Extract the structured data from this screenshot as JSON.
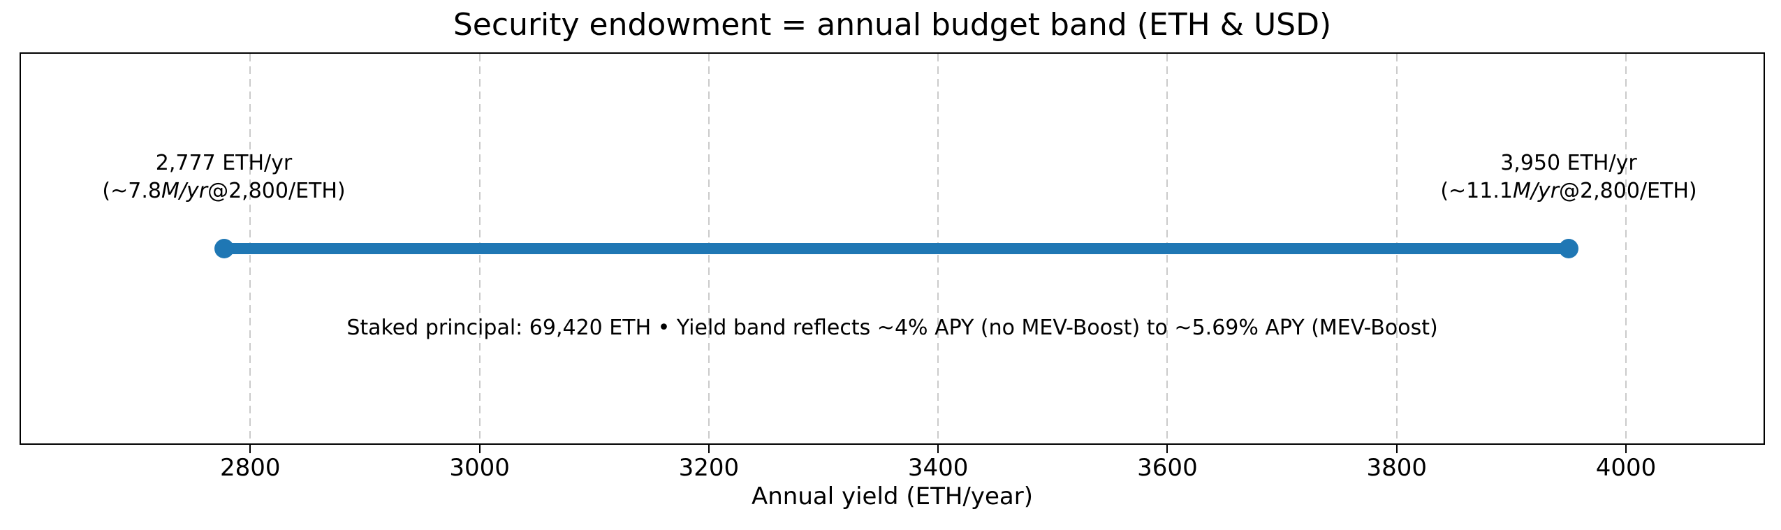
{
  "chart_data": {
    "type": "line",
    "variant": "horizontal-range-band",
    "title": "Security endowment = annual budget band (ETH & USD)",
    "xlabel": "Annual yield (ETH/year)",
    "xlim": [
      2600,
      4120
    ],
    "xticks": [
      "2800",
      "3000",
      "3200",
      "3400",
      "3600",
      "3800",
      "4000"
    ],
    "xtick_values": [
      2800,
      3000,
      3200,
      3400,
      3600,
      3800,
      4000
    ],
    "grid": {
      "axis": "x",
      "style": "dashed",
      "color": "#cbcbcb"
    },
    "band": {
      "start": 2777,
      "end": 3950,
      "y_frac_from_top": 0.5,
      "color": "#1f77b4"
    },
    "labels": {
      "left": {
        "x": 2777,
        "line1": "2,777 ETH/yr",
        "line2_prefix": "(~7.8",
        "line2_italic": "M/yr",
        "line2_suffix": "@2,800/ETH)"
      },
      "right": {
        "x": 3950,
        "line1": "3,950 ETH/yr",
        "line2_prefix": "(~11.1",
        "line2_italic": "M/yr",
        "line2_suffix": "@2,800/ETH)"
      },
      "center_note": "Staked principal: 69,420 ETH • Yield band reflects ~4% APY (no MEV-Boost) to ~5.69% APY (MEV-Boost)"
    },
    "colors": {
      "band": "#1f77b4",
      "grid": "#cbcbcb",
      "frame": "#000000",
      "text": "#000000",
      "background": "#ffffff"
    }
  }
}
